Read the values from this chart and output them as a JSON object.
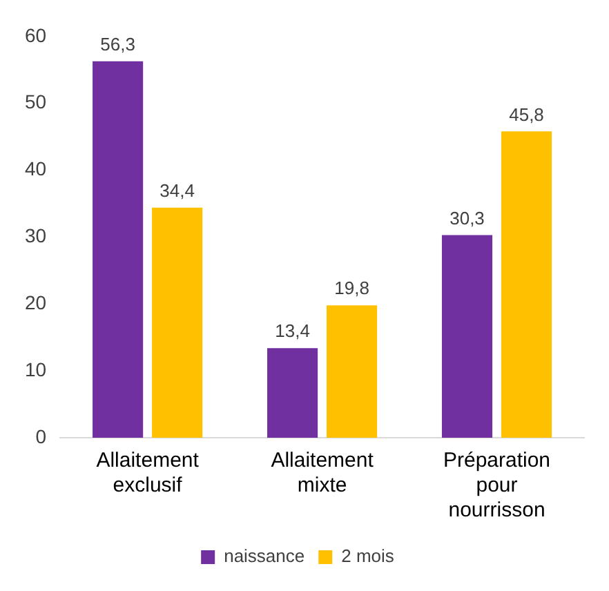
{
  "chart_data": {
    "type": "bar",
    "categories": [
      "Allaitement exclusif",
      "Allaitement mixte",
      "Préparation pour nourrisson"
    ],
    "series": [
      {
        "name": "naissance",
        "color": "#7030a0",
        "values": [
          56.3,
          13.4,
          30.3
        ],
        "value_labels": [
          "56,3",
          "13,4",
          "30,3"
        ]
      },
      {
        "name": "2 mois",
        "color": "#ffc000",
        "values": [
          34.4,
          19.8,
          45.8
        ],
        "value_labels": [
          "34,4",
          "19,8",
          "45,8"
        ]
      }
    ],
    "ylim": [
      0,
      60
    ],
    "yticks": [
      0,
      10,
      20,
      30,
      40,
      50,
      60
    ],
    "grid": false,
    "legend": "bottom"
  }
}
